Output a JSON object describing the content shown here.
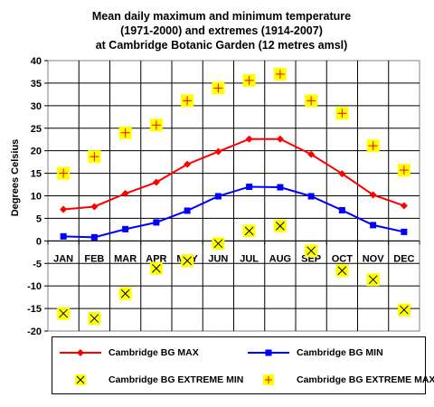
{
  "chart_data": {
    "type": "line",
    "title": [
      "Mean daily maximum and minimum temperature",
      "(1971-2000) and extremes (1914-2007)",
      "at Cambridge Botanic Garden (12 metres amsl)"
    ],
    "ylabel": "Degrees Celsius",
    "xlabel": "",
    "ylim": [
      -20,
      40
    ],
    "yticks": [
      -20,
      -15,
      -10,
      -5,
      0,
      5,
      10,
      15,
      20,
      25,
      30,
      35,
      40
    ],
    "ytick_labels": [
      "-20",
      "-15",
      "-10",
      "-5",
      "0",
      "5",
      "10",
      "15",
      "20",
      "25",
      "30",
      "35",
      "40"
    ],
    "categories": [
      "JAN",
      "FEB",
      "MAR",
      "APR",
      "MAY",
      "JUN",
      "JUL",
      "AUG",
      "SEP",
      "OCT",
      "NOV",
      "DEC"
    ],
    "grid": true,
    "legend_position": "bottom",
    "series": [
      {
        "name": "Cambridge BG MAX",
        "color": "#ff0000",
        "marker": "diamond",
        "line": true,
        "values": [
          7.0,
          7.6,
          10.5,
          13.0,
          17.0,
          19.8,
          22.6,
          22.6,
          19.2,
          14.9,
          10.2,
          7.8
        ]
      },
      {
        "name": "Cambridge BG MIN",
        "color": "#0000ff",
        "marker": "square",
        "line": true,
        "values": [
          1.0,
          0.8,
          2.6,
          4.1,
          6.7,
          9.9,
          12.0,
          11.9,
          9.9,
          6.8,
          3.5,
          2.0
        ]
      },
      {
        "name": "Cambridge BG EXTREME MIN",
        "color": "#ffff00",
        "marker": "x-box",
        "line": false,
        "values": [
          -16.1,
          -17.2,
          -11.7,
          -6.1,
          -4.4,
          -0.6,
          2.2,
          3.3,
          -2.2,
          -6.6,
          -8.6,
          -15.3
        ]
      },
      {
        "name": "Cambridge BG EXTREME MAX",
        "color": "#ffff00",
        "marker": "plus-box",
        "line": false,
        "values": [
          15.0,
          18.7,
          24.0,
          25.7,
          31.1,
          33.9,
          35.6,
          37.0,
          31.1,
          28.3,
          21.1,
          15.7
        ]
      }
    ]
  }
}
